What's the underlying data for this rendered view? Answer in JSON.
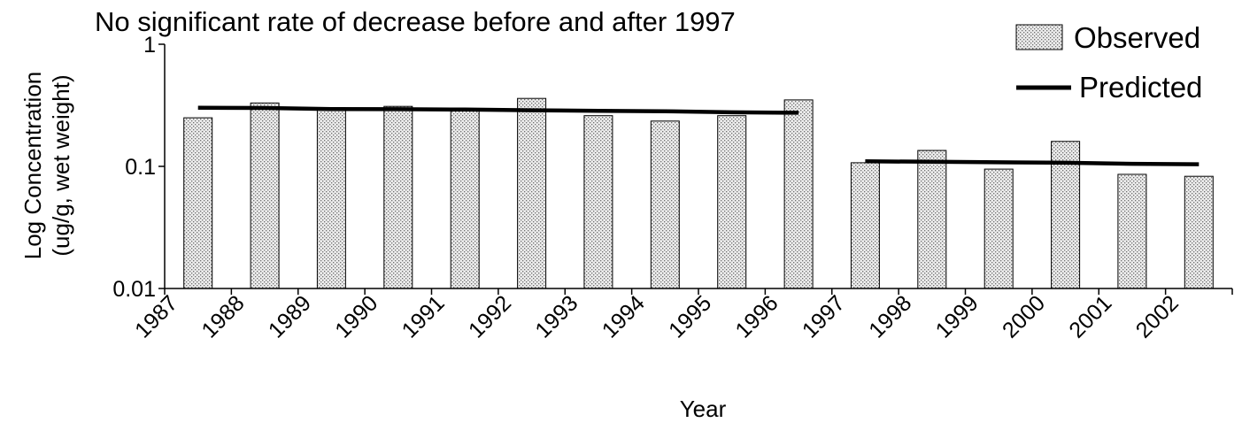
{
  "chart_data": {
    "type": "bar",
    "title": "No significant rate of decrease before and after 1997",
    "xlabel": "Year",
    "ylabel": [
      "Log Concentration",
      "(ug/g, wet weight)"
    ],
    "yscale": "log",
    "ylim": [
      0.01,
      1
    ],
    "yticks": [
      {
        "value": 0.01,
        "label": "0.01"
      },
      {
        "value": 0.1,
        "label": "0.1"
      },
      {
        "value": 1,
        "label": "1"
      }
    ],
    "categories": [
      "1987",
      "1988",
      "1989",
      "1990",
      "1991",
      "1992",
      "1993",
      "1994",
      "1995",
      "1996",
      "1997",
      "1998",
      "1999",
      "2000",
      "2001",
      "2002"
    ],
    "series": [
      {
        "name": "Observed",
        "kind": "bar",
        "pattern": "dotted-gray",
        "values": [
          0.25,
          0.33,
          0.29,
          0.31,
          0.29,
          0.36,
          0.26,
          0.235,
          0.26,
          0.35,
          0.107,
          0.135,
          0.095,
          0.16,
          0.086,
          0.083
        ]
      },
      {
        "name": "Predicted",
        "kind": "line",
        "segments": [
          {
            "categories": [
              "1987",
              "1988",
              "1989",
              "1990",
              "1991",
              "1992",
              "1993",
              "1994",
              "1995",
              "1996"
            ],
            "values": [
              0.302,
              0.301,
              0.295,
              0.294,
              0.292,
              0.288,
              0.285,
              0.283,
              0.277,
              0.275
            ]
          },
          {
            "categories": [
              "1997",
              "1998",
              "1999",
              "2000",
              "2001",
              "2002"
            ],
            "values": [
              0.11,
              0.109,
              0.108,
              0.107,
              0.105,
              0.104
            ]
          }
        ]
      }
    ],
    "legend": {
      "position": "top-right"
    },
    "grid": false
  }
}
